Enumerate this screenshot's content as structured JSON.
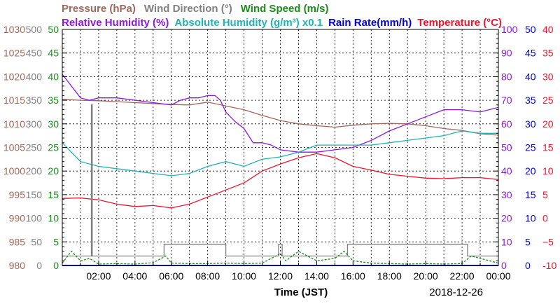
{
  "chart_data": {
    "type": "line",
    "date": "2018-12-26",
    "xlabel": "Time (JST)",
    "x_range_hours": [
      0,
      24
    ],
    "x_ticks": [
      "02:00",
      "04:00",
      "06:00",
      "08:00",
      "10:00",
      "12:00",
      "14:00",
      "16:00",
      "18:00",
      "20:00",
      "22:00",
      "00:00"
    ],
    "grid": true,
    "legend_row1": [
      {
        "key": "pressure",
        "text": "Pressure (hPa)"
      },
      {
        "key": "wind_dir",
        "text": "Wind Direction (°)"
      },
      {
        "key": "wind_speed",
        "text": "Wind Speed (m/s)"
      }
    ],
    "legend_row2": [
      {
        "key": "rh",
        "text": "Relative Humidity (%)"
      },
      {
        "key": "ah",
        "text": "Absolute Humidity (g/m³) x0.1"
      },
      {
        "key": "rain",
        "text": "Rain Rate(mm/h)"
      },
      {
        "key": "temp",
        "text": "Temperature (°C)"
      }
    ],
    "axes": {
      "pressure": {
        "min": 980,
        "max": 1030,
        "side": "left",
        "ticks": [
          "980",
          "985",
          "990",
          "995",
          "1000",
          "1005",
          "1010",
          "1015",
          "1020",
          "1025",
          "1030"
        ]
      },
      "wind_dir": {
        "min": 0,
        "max": 500,
        "side": "left",
        "ticks": [
          "0",
          "50",
          "100",
          "150",
          "200",
          "250",
          "300",
          "350",
          "400",
          "450",
          "500"
        ]
      },
      "wind_speed": {
        "min": 0,
        "max": 50,
        "side": "left",
        "ticks": [
          "0",
          "5",
          "10",
          "15",
          "20",
          "25",
          "30",
          "35",
          "40",
          "45",
          "50"
        ]
      },
      "rh": {
        "min": 0,
        "max": 100,
        "side": "right",
        "ticks": [
          "0",
          "10",
          "20",
          "30",
          "40",
          "50",
          "60",
          "70",
          "80",
          "90",
          "100"
        ]
      },
      "rain": {
        "min": 0,
        "max": 50,
        "side": "right",
        "ticks": [
          "0",
          "5",
          "10",
          "15",
          "20",
          "25",
          "30",
          "35",
          "40",
          "45",
          "50"
        ]
      },
      "temp": {
        "min": -10,
        "max": 40,
        "side": "right",
        "ticks": [
          "-10",
          "−5",
          "0",
          "5",
          "10",
          "15",
          "20",
          "25",
          "30",
          "35",
          "40"
        ]
      }
    },
    "colors": {
      "pressure": "#a0685a",
      "wind_dir": "#808080",
      "wind_speed": "#1a8c1a",
      "rh": "#8c1adc",
      "ah": "#1fb3b3",
      "rain": "#0000dc",
      "temp": "#f0142d"
    },
    "series": [
      {
        "key": "pressure",
        "name": "Pressure (hPa)",
        "axis": "pressure",
        "x": [
          0,
          1,
          2,
          3,
          4,
          5,
          6,
          7,
          8,
          9,
          10,
          11,
          12,
          13,
          14,
          15,
          16,
          17,
          18,
          19,
          20,
          21,
          22,
          23,
          24
        ],
        "y": [
          1015.2,
          1015.0,
          1014.9,
          1014.7,
          1014.5,
          1014.3,
          1014.1,
          1014.0,
          1014.6,
          1013.8,
          1013.0,
          1011.8,
          1010.7,
          1010.0,
          1009.6,
          1009.3,
          1009.7,
          1010.0,
          1010.1,
          1010.0,
          1009.6,
          1009.0,
          1008.6,
          1007.9,
          1007.6
        ]
      },
      {
        "key": "rh",
        "name": "Relative Humidity (%)",
        "axis": "rh",
        "x": [
          0,
          0.5,
          1,
          1.5,
          2,
          3,
          4,
          5,
          6,
          6.5,
          7,
          7.5,
          8,
          8.4,
          8.7,
          9,
          9.5,
          10,
          10.5,
          11,
          11.5,
          12,
          13,
          14,
          15,
          16,
          17,
          18,
          19,
          20,
          21,
          22,
          23,
          24
        ],
        "y": [
          81,
          76,
          71,
          70,
          71,
          71,
          70,
          69,
          68,
          70,
          71,
          71,
          72,
          72,
          70,
          65,
          61,
          58,
          52,
          52,
          51,
          49,
          48,
          48,
          49,
          50,
          53,
          57,
          60,
          63,
          66,
          66,
          65,
          67
        ]
      },
      {
        "key": "ah",
        "name": "Absolute Humidity (g/m³) x0.1",
        "axis": "rh",
        "x": [
          0,
          1,
          2,
          3,
          4,
          5,
          6,
          7,
          8,
          9,
          10,
          11,
          12,
          13,
          14,
          15,
          16,
          17,
          18,
          19,
          20,
          21,
          22,
          23,
          24
        ],
        "y": [
          52,
          44,
          42,
          41,
          40,
          39,
          38,
          39,
          42,
          44,
          42,
          45,
          46,
          48,
          51,
          51,
          51,
          51,
          52,
          53,
          54,
          55,
          57,
          56,
          56
        ]
      },
      {
        "key": "temp",
        "name": "Temperature (°C)",
        "axis": "temp",
        "x": [
          0,
          1,
          2,
          3,
          4,
          5,
          6,
          7,
          8,
          9,
          10,
          11,
          12,
          13,
          14,
          15,
          16,
          17,
          18,
          19,
          20,
          21,
          22,
          23,
          24
        ],
        "y": [
          4.2,
          4.3,
          3.9,
          3.0,
          2.5,
          2.7,
          2.2,
          3.0,
          4.5,
          6.0,
          7.5,
          10.0,
          11.5,
          12.8,
          13.7,
          12.8,
          11.0,
          10.2,
          9.3,
          8.9,
          8.5,
          8.4,
          8.6,
          8.6,
          8.2
        ]
      },
      {
        "key": "wind_dir",
        "name": "Wind Direction (°)",
        "axis": "wind_dir",
        "x": [
          0,
          1.6,
          1.6,
          1.65,
          1.65,
          2.1,
          2.1,
          5.6,
          5.6,
          9.0,
          9.0,
          11.9,
          11.9,
          12.1,
          12.1,
          15.7,
          15.7,
          22.3,
          22.3,
          24
        ],
        "y": [
          20,
          20,
          340,
          340,
          20,
          20,
          20,
          20,
          45,
          45,
          20,
          20,
          45,
          45,
          20,
          20,
          45,
          45,
          20,
          20
        ]
      },
      {
        "key": "wind_speed",
        "name": "Wind Speed (m/s)",
        "axis": "wind_speed",
        "x": [
          0,
          0.5,
          1,
          1.5,
          2,
          3,
          4,
          5,
          5.7,
          6,
          7,
          8,
          9,
          10,
          11,
          12,
          12.3,
          13,
          14,
          15,
          15.5,
          16,
          17,
          18,
          19,
          20,
          21,
          22,
          22.5,
          23,
          24
        ],
        "y": [
          0.5,
          3,
          1,
          1.5,
          0.3,
          0.4,
          0.3,
          0.6,
          2,
          0.5,
          0.4,
          0.4,
          0.5,
          0.4,
          0.5,
          2.5,
          1,
          3,
          1,
          1.5,
          3,
          1,
          0.5,
          0.4,
          0.3,
          0.4,
          0.3,
          0.4,
          2,
          1.5,
          0.5
        ]
      },
      {
        "key": "rain",
        "name": "Rain Rate(mm/h)",
        "axis": "rain",
        "x": [
          0,
          24
        ],
        "y": [
          0,
          0
        ]
      }
    ]
  }
}
